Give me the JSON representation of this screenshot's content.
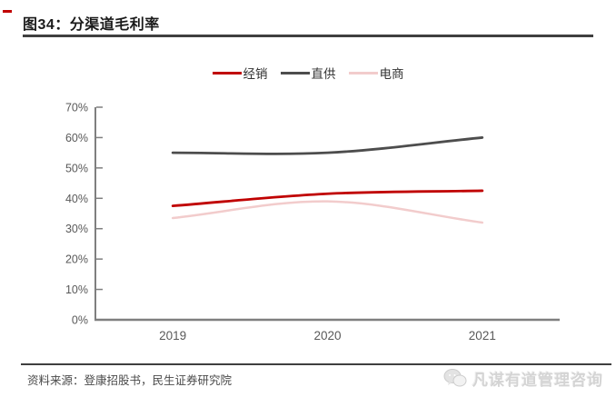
{
  "figure": {
    "title": "图34：分渠道毛利率",
    "source": "资料来源：登康招股书，民生证券研究院"
  },
  "watermark": {
    "icon": "wechat-icon",
    "text": "凡谋有道管理咨询"
  },
  "colors": {
    "accent_red": "#C00000",
    "rule_dark": "#3f3f3f",
    "axis_gray": "#7f7f7f",
    "tick_label_gray": "#595959"
  },
  "chart_data": {
    "type": "line",
    "title": "分渠道毛利率",
    "categories": [
      "2019",
      "2020",
      "2021"
    ],
    "series": [
      {
        "name": "经销",
        "color": "#C00000",
        "values": [
          37.5,
          41.5,
          42.5
        ]
      },
      {
        "name": "直供",
        "color": "#4D4D4D",
        "values": [
          55,
          55,
          60
        ]
      },
      {
        "name": "电商",
        "color": "#F2CCCC",
        "values": [
          33.5,
          39,
          32
        ]
      }
    ],
    "ylim": [
      0,
      70
    ],
    "ytick_step": 10,
    "ytick_format": "percent",
    "xlabel": "",
    "ylabel": "",
    "grid": false,
    "smooth": true,
    "legend_position": "top"
  }
}
